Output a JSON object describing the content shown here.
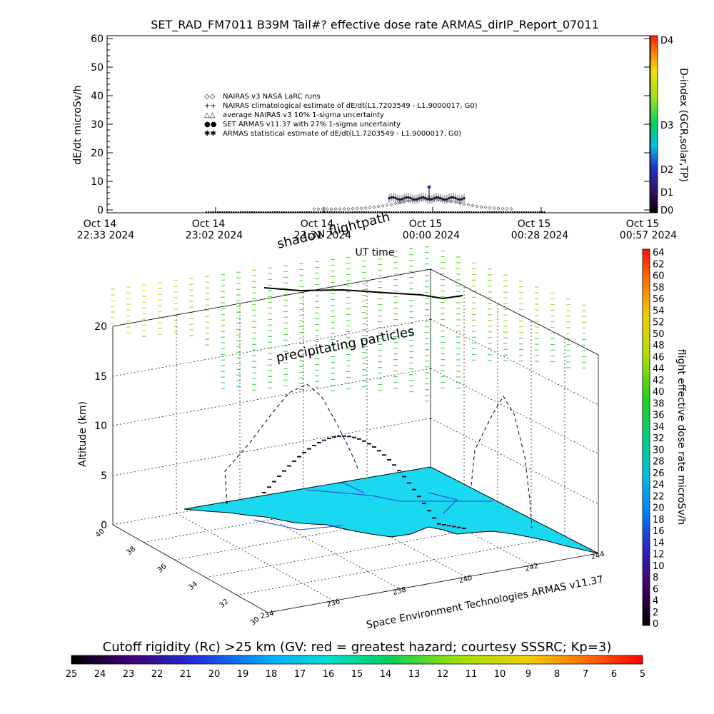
{
  "title": "SET_RAD_FM7011  B39M Tail#? effective dose rate ARMAS_dirIP_Report_07011",
  "top_chart": {
    "ylabel": "dE/dt microSv/h",
    "xlabel": "UT time",
    "right_label": "D-index (GCR,solar,TP)",
    "yticks": [
      "0",
      "10",
      "20",
      "30",
      "40",
      "50",
      "60"
    ],
    "xticks": [
      {
        "l1": "Oct 14",
        "l2": "22:33 2024"
      },
      {
        "l1": "Oct 14",
        "l2": "23:02 2024"
      },
      {
        "l1": "Oct 14",
        "l2": "23:31 2024"
      },
      {
        "l1": "Oct 15",
        "l2": "00:00 2024"
      },
      {
        "l1": "Oct 15",
        "l2": "00:28 2024"
      },
      {
        "l1": "Oct 15",
        "l2": "00:57 2024"
      }
    ],
    "dindex_ticks": [
      "D0",
      "D1",
      "D2",
      "D3",
      "D4"
    ],
    "legend": [
      {
        "symbol": "◇◇",
        "text": "NAIRAS v3 NASA LaRC runs"
      },
      {
        "symbol": "++",
        "text": "NAIRAS climatological estimate of dE/dt(L1.7203549 - L1.9000017, G0)"
      },
      {
        "symbol": "△△",
        "text": "average NAIRAS v3 10% 1-sigma uncertainty"
      },
      {
        "symbol": "●●",
        "text": "SET ARMAS v11.37 with 27% 1-sigma uncertainty"
      },
      {
        "symbol": "✱✱",
        "text": "ARMAS statistical estimate of dE/dt(L1.7203549 - L1.9000017, G0)"
      }
    ]
  },
  "scene": {
    "zlabel": "Altitude (km)",
    "zticks": [
      "0",
      "5",
      "10",
      "15",
      "20"
    ],
    "lat_ticks": [
      "30",
      "32",
      "34",
      "36",
      "38",
      "40"
    ],
    "lon_ticks": [
      "234",
      "236",
      "238",
      "240",
      "242",
      "244"
    ],
    "annotations": {
      "shadow": "shadow flightpath",
      "precip": "precipitating particles",
      "credit": "Space Environment Technologies ARMAS v11.37"
    },
    "right_label": "flight effective dose rate microSv/h",
    "dose_ticks": [
      "0",
      "2",
      "4",
      "6",
      "8",
      "10",
      "12",
      "14",
      "16",
      "18",
      "20",
      "22",
      "24",
      "26",
      "28",
      "30",
      "32",
      "34",
      "36",
      "38",
      "40",
      "42",
      "44",
      "46",
      "48",
      "50",
      "52",
      "54",
      "56",
      "58",
      "60",
      "62",
      "64"
    ]
  },
  "cutoff": {
    "label": "Cutoff rigidity (Rc) >25 km (GV: red = greatest hazard; courtesy SSSRC; Kp=3)",
    "ticks": [
      "25",
      "24",
      "23",
      "22",
      "21",
      "20",
      "19",
      "18",
      "17",
      "16",
      "15",
      "14",
      "13",
      "12",
      "11",
      "10",
      "9",
      "8",
      "7",
      "6",
      "5"
    ]
  },
  "chart_data": {
    "type": "scatter",
    "title": "SET_RAD_FM7011  B39M Tail#? effective dose rate ARMAS_dirIP_Report_07011",
    "xlabel": "UT time",
    "ylabel": "dE/dt microSv/h",
    "ylim": [
      0,
      60
    ],
    "x": [
      "Oct 14 22:33",
      "Oct 14 23:02",
      "Oct 14 23:31",
      "Oct 15 00:00",
      "Oct 15 00:28",
      "Oct 15 00:57"
    ],
    "series": [
      {
        "name": "NAIRAS v3 NASA LaRC runs",
        "values": [
          0,
          0,
          0.5,
          3.5,
          0.5,
          0
        ]
      },
      {
        "name": "SET ARMAS v11.37 with 27% 1-sigma uncertainty",
        "values": [
          0,
          0,
          0.5,
          4.5,
          0.5,
          0
        ]
      }
    ],
    "peak_value": 8
  }
}
